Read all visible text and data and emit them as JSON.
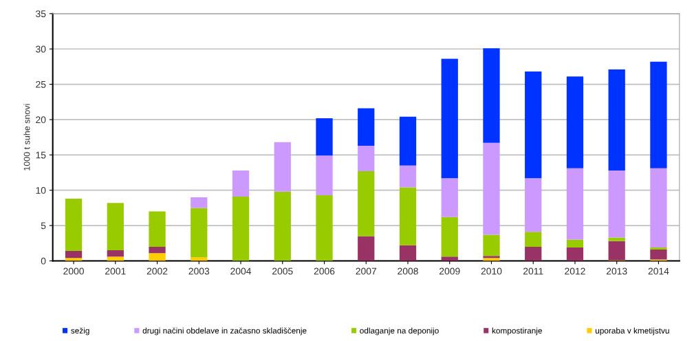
{
  "chart_data": {
    "type": "bar",
    "stacked": true,
    "ylabel": "1000 t suhe snovi",
    "categories": [
      "2000",
      "2001",
      "2002",
      "2003",
      "2004",
      "2005",
      "2006",
      "2007",
      "2008",
      "2009",
      "2010",
      "2011",
      "2012",
      "2013",
      "2014"
    ],
    "series": [
      {
        "name": "uporaba v kmetijstvu",
        "color": "#ffcc00",
        "values": [
          0.4,
          0.6,
          1.1,
          0.5,
          0,
          0,
          0,
          0,
          0,
          0,
          0.4,
          0,
          0,
          0.1,
          0.2
        ]
      },
      {
        "name": "kompostiranje",
        "color": "#993366",
        "values": [
          1.0,
          0.9,
          0.9,
          0,
          0,
          0,
          0,
          3.5,
          2.2,
          0.6,
          0.3,
          2.0,
          1.9,
          2.7,
          1.4
        ]
      },
      {
        "name": "odlaganje na deponijo",
        "color": "#99cc00",
        "values": [
          7.4,
          6.7,
          5.0,
          7.0,
          9.1,
          9.8,
          9.3,
          9.2,
          8.2,
          5.6,
          3.0,
          2.1,
          1.1,
          0.5,
          0.3
        ]
      },
      {
        "name": "drugi načini obdelave in začasno skladiščenje",
        "color": "#cc99ff",
        "values": [
          0,
          0,
          0,
          1.5,
          3.7,
          7.0,
          5.6,
          3.6,
          3.1,
          5.5,
          13.0,
          7.6,
          10.1,
          9.5,
          11.2
        ]
      },
      {
        "name": "sežig",
        "color": "#0033ff",
        "values": [
          0,
          0,
          0,
          0,
          0,
          0,
          5.3,
          5.3,
          6.9,
          16.9,
          13.4,
          15.1,
          13.0,
          14.3,
          15.1
        ]
      }
    ],
    "ylim": [
      0,
      35
    ],
    "yticks": [
      0,
      5,
      10,
      15,
      20,
      25,
      30,
      35
    ],
    "grid": "y",
    "legend": "bottom"
  }
}
